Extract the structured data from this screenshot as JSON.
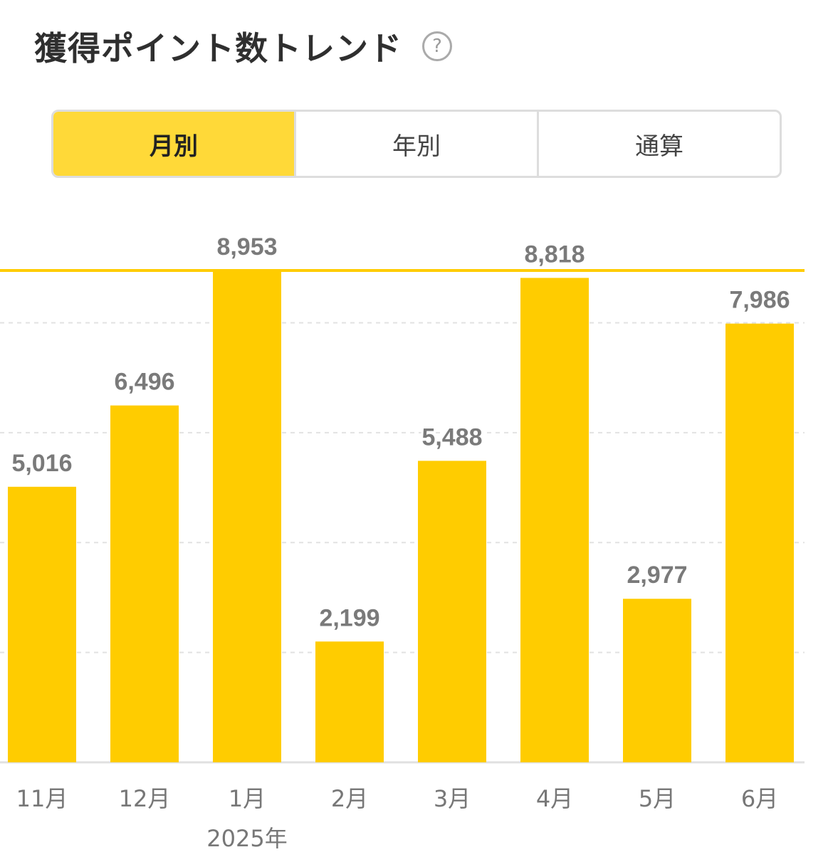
{
  "title": "獲得ポイント数トレンド",
  "help_glyph": "?",
  "tabs": [
    {
      "label": "月別",
      "active": true
    },
    {
      "label": "年別",
      "active": false
    },
    {
      "label": "通算",
      "active": false
    }
  ],
  "colors": {
    "bar": "#FFCC00",
    "active_tab": "#FFD938",
    "value_label": "#7a7a7a",
    "axis_label": "#777777",
    "grid": "#e2e2e2",
    "axis": "#e0e0e0"
  },
  "chart_data": {
    "type": "bar",
    "categories": [
      "11月",
      "12月",
      "1月",
      "2月",
      "3月",
      "4月",
      "5月",
      "6月"
    ],
    "values": [
      5016,
      6496,
      8953,
      2199,
      5488,
      8818,
      2977,
      7986
    ],
    "value_labels": [
      "5,016",
      "6,496",
      "8,953",
      "2,199",
      "5,488",
      "8,818",
      "2,977",
      "7,986"
    ],
    "year_label": {
      "category_index": 2,
      "text": "2025年"
    },
    "ylim": [
      0,
      8953
    ],
    "reference_line": {
      "value": 8953,
      "style": "solid"
    },
    "gridlines": [
      2000,
      4000,
      6000,
      8000
    ],
    "grid": true,
    "legend": "none"
  }
}
